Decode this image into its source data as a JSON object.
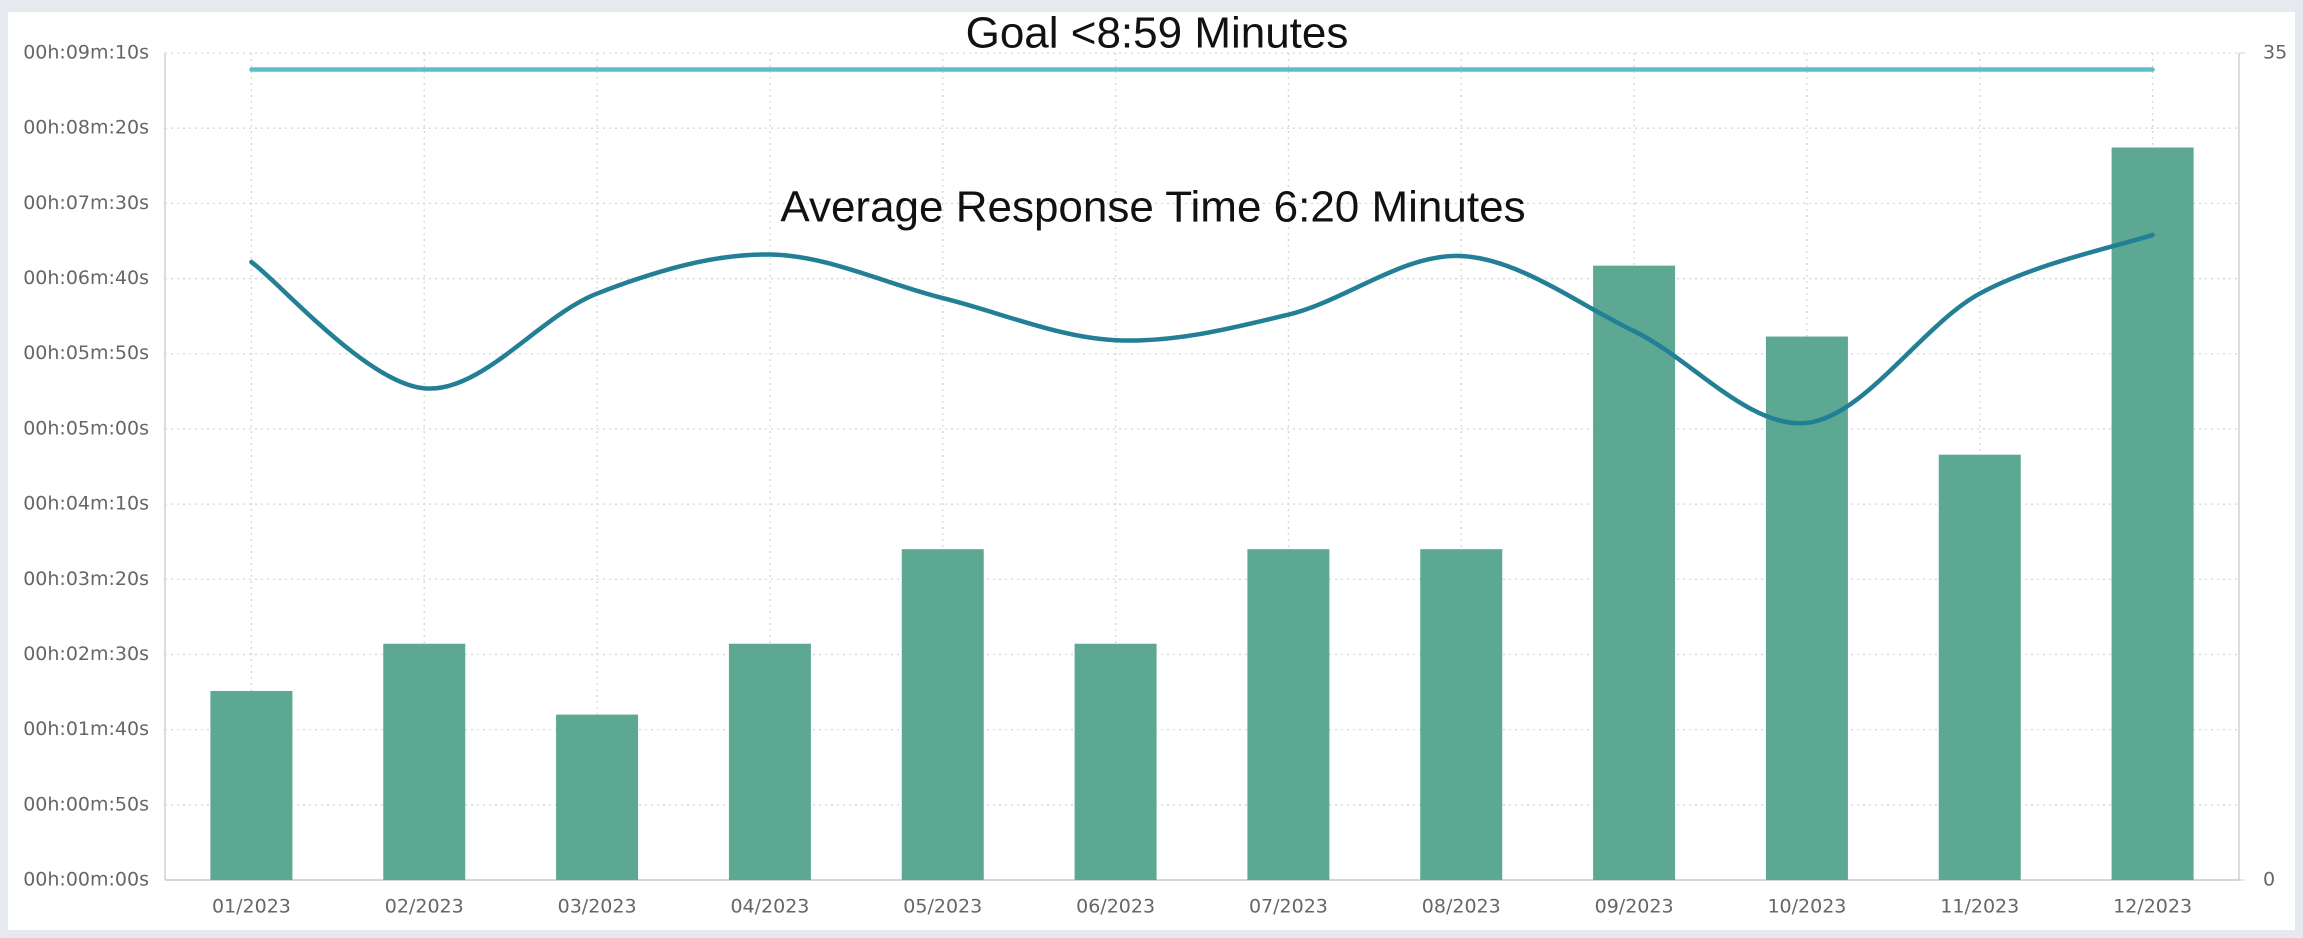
{
  "chart_data": {
    "type": "combo",
    "title": "Goal <8:59 Minutes",
    "annotations": [
      "Average Response Time 6:20 Minutes"
    ],
    "categories": [
      "01/2023",
      "02/2023",
      "03/2023",
      "04/2023",
      "05/2023",
      "06/2023",
      "07/2023",
      "08/2023",
      "09/2023",
      "10/2023",
      "11/2023",
      "12/2023"
    ],
    "series": [
      {
        "type": "bar",
        "axis": "y2",
        "color": "#5ca893",
        "values": [
          8,
          10,
          7,
          10,
          14,
          10,
          14,
          14,
          26,
          23,
          18,
          31
        ]
      },
      {
        "type": "line",
        "color": "#227f95",
        "values": [
          411,
          327,
          390,
          416,
          387,
          359,
          376,
          415,
          365,
          304,
          390,
          429
        ]
      },
      {
        "type": "line",
        "color": "#5ebdcb",
        "values": [
          539,
          539,
          539,
          539,
          539,
          539,
          539,
          539,
          539,
          539,
          539,
          539
        ]
      }
    ],
    "ylim": [
      0,
      550
    ],
    "yticks": [
      {
        "value": 0,
        "label": "00h:00m:00s"
      },
      {
        "value": 50,
        "label": "00h:00m:50s"
      },
      {
        "value": 100,
        "label": "00h:01m:40s"
      },
      {
        "value": 150,
        "label": "00h:02m:30s"
      },
      {
        "value": 200,
        "label": "00h:03m:20s"
      },
      {
        "value": 250,
        "label": "00h:04m:10s"
      },
      {
        "value": 300,
        "label": "00h:05m:00s"
      },
      {
        "value": 350,
        "label": "00h:05m:50s"
      },
      {
        "value": 400,
        "label": "00h:06m:40s"
      },
      {
        "value": 450,
        "label": "00h:07m:30s"
      },
      {
        "value": 500,
        "label": "00h:08m:20s"
      },
      {
        "value": 550,
        "label": "00h:09m:10s"
      }
    ],
    "y2lim": [
      0,
      35
    ],
    "y2ticks": [
      0,
      35
    ],
    "grid": true
  }
}
